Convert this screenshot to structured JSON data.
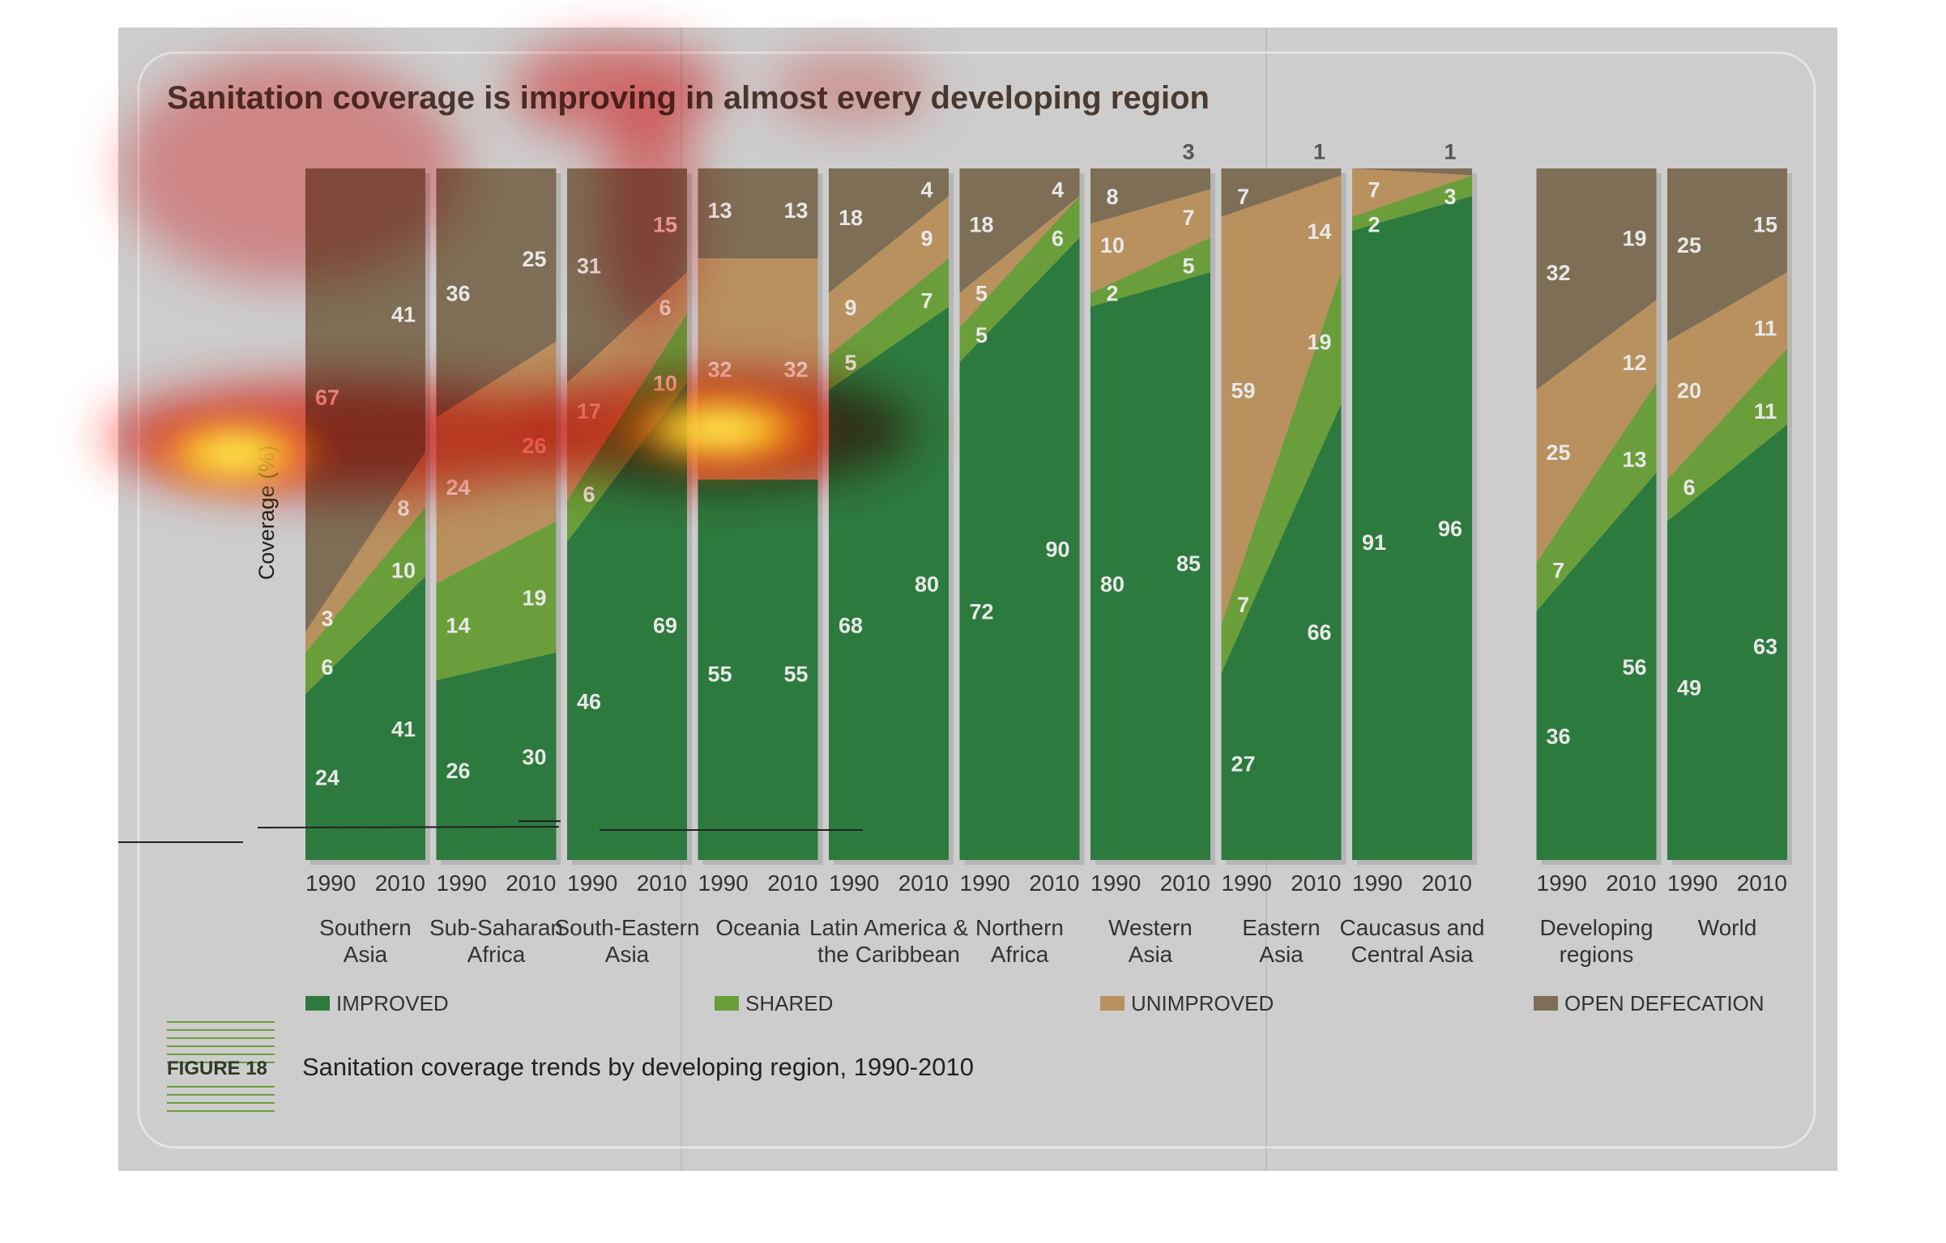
{
  "title": "Sanitation coverage is improving in almost every developing region",
  "figure_label": "FIGURE 18",
  "figure_caption": "Sanitation coverage trends by developing region, 1990-2010",
  "colors": {
    "improved": "#2d7a3e",
    "shared": "#6a9e3a",
    "unimproved": "#b8915f",
    "open_defecation": "#7f6e56",
    "page": "#cdcdcd",
    "title": "#4a3a30",
    "label": "#e8e8e8"
  },
  "chart_data": {
    "type": "area",
    "title": "Sanitation coverage is improving in almost every developing region",
    "ylabel": "Coverage (%)",
    "ylim": [
      0,
      100
    ],
    "x": [
      "1990",
      "2010"
    ],
    "legend_position": "bottom",
    "series_order": [
      "improved",
      "shared",
      "unimproved",
      "open_defecation"
    ],
    "legend": [
      {
        "key": "improved",
        "label": "IMPROVED"
      },
      {
        "key": "shared",
        "label": "SHARED"
      },
      {
        "key": "unimproved",
        "label": "UNIMPROVED"
      },
      {
        "key": "open_defecation",
        "label": "OPEN DEFECATION"
      }
    ],
    "regions": [
      {
        "name": [
          "Southern",
          "Asia"
        ],
        "values": {
          "1990": [
            24,
            6,
            3,
            67
          ],
          "2010": [
            41,
            10,
            8,
            41
          ]
        }
      },
      {
        "name": [
          "Sub-Saharan",
          "Africa"
        ],
        "values": {
          "1990": [
            26,
            14,
            24,
            36
          ],
          "2010": [
            30,
            19,
            26,
            25
          ]
        }
      },
      {
        "name": [
          "South-Eastern",
          "Asia"
        ],
        "values": {
          "1990": [
            46,
            6,
            17,
            31
          ],
          "2010": [
            69,
            10,
            6,
            15
          ]
        }
      },
      {
        "name": [
          "Oceania",
          ""
        ],
        "values": {
          "1990": [
            55,
            0,
            32,
            13
          ],
          "2010": [
            55,
            0,
            32,
            13
          ]
        }
      },
      {
        "name": [
          "Latin America &",
          "the Caribbean"
        ],
        "values": {
          "1990": [
            68,
            5,
            9,
            18
          ],
          "2010": [
            80,
            7,
            9,
            4
          ]
        }
      },
      {
        "name": [
          "Northern",
          "Africa"
        ],
        "values": {
          "1990": [
            72,
            5,
            5,
            18
          ],
          "2010": [
            90,
            6,
            0,
            4
          ]
        }
      },
      {
        "name": [
          "Western",
          "Asia"
        ],
        "values": {
          "1990": [
            80,
            2,
            10,
            8
          ],
          "2010": [
            85,
            5,
            7,
            3
          ]
        }
      },
      {
        "name": [
          "Eastern",
          "Asia"
        ],
        "values": {
          "1990": [
            27,
            7,
            59,
            7
          ],
          "2010": [
            66,
            19,
            14,
            1
          ]
        }
      },
      {
        "name": [
          "Caucasus and",
          "Central Asia"
        ],
        "values": {
          "1990": [
            91,
            2,
            7,
            0
          ],
          "2010": [
            96,
            3,
            0,
            1
          ]
        }
      },
      {
        "name": [
          "Developing",
          "regions"
        ],
        "values": {
          "1990": [
            36,
            7,
            25,
            32
          ],
          "2010": [
            56,
            13,
            12,
            19
          ]
        }
      },
      {
        "name": [
          "World",
          ""
        ],
        "values": {
          "1990": [
            49,
            6,
            20,
            25
          ],
          "2010": [
            63,
            11,
            11,
            15
          ]
        }
      }
    ],
    "labels": [
      {
        "r": 0,
        "y": "1990",
        "t": "24",
        "v": 12
      },
      {
        "r": 0,
        "y": "1990",
        "t": "6",
        "v": 28
      },
      {
        "r": 0,
        "y": "1990",
        "t": "3",
        "v": 35
      },
      {
        "r": 0,
        "y": "1990",
        "t": "67",
        "v": 67
      },
      {
        "r": 0,
        "y": "2010",
        "t": "41",
        "v": 19
      },
      {
        "r": 0,
        "y": "2010",
        "t": "10",
        "v": 42
      },
      {
        "r": 0,
        "y": "2010",
        "t": "8",
        "v": 51
      },
      {
        "r": 0,
        "y": "2010",
        "t": "41",
        "v": 79
      },
      {
        "r": 1,
        "y": "1990",
        "t": "26",
        "v": 13
      },
      {
        "r": 1,
        "y": "1990",
        "t": "14",
        "v": 34
      },
      {
        "r": 1,
        "y": "1990",
        "t": "24",
        "v": 54
      },
      {
        "r": 1,
        "y": "1990",
        "t": "36",
        "v": 82
      },
      {
        "r": 1,
        "y": "2010",
        "t": "30",
        "v": 15
      },
      {
        "r": 1,
        "y": "2010",
        "t": "19",
        "v": 38
      },
      {
        "r": 1,
        "y": "2010",
        "t": "26",
        "v": 60
      },
      {
        "r": 1,
        "y": "2010",
        "t": "25",
        "v": 87
      },
      {
        "r": 2,
        "y": "1990",
        "t": "46",
        "v": 23
      },
      {
        "r": 2,
        "y": "1990",
        "t": "6",
        "v": 53
      },
      {
        "r": 2,
        "y": "1990",
        "t": "17",
        "v": 65
      },
      {
        "r": 2,
        "y": "1990",
        "t": "31",
        "v": 86
      },
      {
        "r": 2,
        "y": "2010",
        "t": "69",
        "v": 34
      },
      {
        "r": 2,
        "y": "2010",
        "t": "10",
        "v": 69
      },
      {
        "r": 2,
        "y": "2010",
        "t": "6",
        "v": 80
      },
      {
        "r": 2,
        "y": "2010",
        "t": "15",
        "v": 92
      },
      {
        "r": 3,
        "y": "1990",
        "t": "55",
        "v": 27
      },
      {
        "r": 3,
        "y": "1990",
        "t": "32",
        "v": 71
      },
      {
        "r": 3,
        "y": "1990",
        "t": "13",
        "v": 94
      },
      {
        "r": 3,
        "y": "2010",
        "t": "55",
        "v": 27
      },
      {
        "r": 3,
        "y": "2010",
        "t": "32",
        "v": 71
      },
      {
        "r": 3,
        "y": "2010",
        "t": "13",
        "v": 94
      },
      {
        "r": 4,
        "y": "1990",
        "t": "68",
        "v": 34
      },
      {
        "r": 4,
        "y": "1990",
        "t": "5",
        "v": 72
      },
      {
        "r": 4,
        "y": "1990",
        "t": "9",
        "v": 80
      },
      {
        "r": 4,
        "y": "1990",
        "t": "18",
        "v": 93
      },
      {
        "r": 4,
        "y": "2010",
        "t": "80",
        "v": 40
      },
      {
        "r": 4,
        "y": "2010",
        "t": "7",
        "v": 81
      },
      {
        "r": 4,
        "y": "2010",
        "t": "9",
        "v": 90
      },
      {
        "r": 4,
        "y": "2010",
        "t": "4",
        "v": 97
      },
      {
        "r": 5,
        "y": "1990",
        "t": "72",
        "v": 36
      },
      {
        "r": 5,
        "y": "1990",
        "t": "5",
        "v": 76
      },
      {
        "r": 5,
        "y": "1990",
        "t": "5",
        "v": 82
      },
      {
        "r": 5,
        "y": "1990",
        "t": "18",
        "v": 92
      },
      {
        "r": 5,
        "y": "2010",
        "t": "90",
        "v": 45
      },
      {
        "r": 5,
        "y": "2010",
        "t": "6",
        "v": 90
      },
      {
        "r": 5,
        "y": "2010",
        "t": "4",
        "v": 97
      },
      {
        "r": 6,
        "y": "1990",
        "t": "80",
        "v": 40
      },
      {
        "r": 6,
        "y": "1990",
        "t": "2",
        "v": 82
      },
      {
        "r": 6,
        "y": "1990",
        "t": "10",
        "v": 89
      },
      {
        "r": 6,
        "y": "1990",
        "t": "8",
        "v": 96
      },
      {
        "r": 6,
        "y": "2010",
        "t": "85",
        "v": 43
      },
      {
        "r": 6,
        "y": "2010",
        "t": "5",
        "v": 86
      },
      {
        "r": 6,
        "y": "2010",
        "t": "7",
        "v": 93
      },
      {
        "r": 6,
        "y": "2010",
        "t": "3",
        "v": 102.5
      },
      {
        "r": 7,
        "y": "1990",
        "t": "27",
        "v": 14
      },
      {
        "r": 7,
        "y": "1990",
        "t": "7",
        "v": 37
      },
      {
        "r": 7,
        "y": "1990",
        "t": "59",
        "v": 68
      },
      {
        "r": 7,
        "y": "1990",
        "t": "7",
        "v": 96
      },
      {
        "r": 7,
        "y": "2010",
        "t": "66",
        "v": 33
      },
      {
        "r": 7,
        "y": "2010",
        "t": "19",
        "v": 75
      },
      {
        "r": 7,
        "y": "2010",
        "t": "14",
        "v": 91
      },
      {
        "r": 7,
        "y": "2010",
        "t": "1",
        "v": 102.5
      },
      {
        "r": 8,
        "y": "1990",
        "t": "91",
        "v": 46
      },
      {
        "r": 8,
        "y": "1990",
        "t": "2",
        "v": 92
      },
      {
        "r": 8,
        "y": "1990",
        "t": "7",
        "v": 97
      },
      {
        "r": 8,
        "y": "2010",
        "t": "96",
        "v": 48
      },
      {
        "r": 8,
        "y": "2010",
        "t": "3",
        "v": 96
      },
      {
        "r": 8,
        "y": "2010",
        "t": "1",
        "v": 102.5
      },
      {
        "r": 9,
        "y": "1990",
        "t": "36",
        "v": 18
      },
      {
        "r": 9,
        "y": "1990",
        "t": "7",
        "v": 42
      },
      {
        "r": 9,
        "y": "1990",
        "t": "25",
        "v": 59
      },
      {
        "r": 9,
        "y": "1990",
        "t": "32",
        "v": 85
      },
      {
        "r": 9,
        "y": "2010",
        "t": "56",
        "v": 28
      },
      {
        "r": 9,
        "y": "2010",
        "t": "13",
        "v": 58
      },
      {
        "r": 9,
        "y": "2010",
        "t": "12",
        "v": 72
      },
      {
        "r": 9,
        "y": "2010",
        "t": "19",
        "v": 90
      },
      {
        "r": 10,
        "y": "1990",
        "t": "49",
        "v": 25
      },
      {
        "r": 10,
        "y": "1990",
        "t": "6",
        "v": 54
      },
      {
        "r": 10,
        "y": "1990",
        "t": "20",
        "v": 68
      },
      {
        "r": 10,
        "y": "1990",
        "t": "25",
        "v": 89
      },
      {
        "r": 10,
        "y": "2010",
        "t": "63",
        "v": 31
      },
      {
        "r": 10,
        "y": "2010",
        "t": "11",
        "v": 65
      },
      {
        "r": 10,
        "y": "2010",
        "t": "11",
        "v": 77
      },
      {
        "r": 10,
        "y": "2010",
        "t": "15",
        "v": 92
      }
    ]
  }
}
